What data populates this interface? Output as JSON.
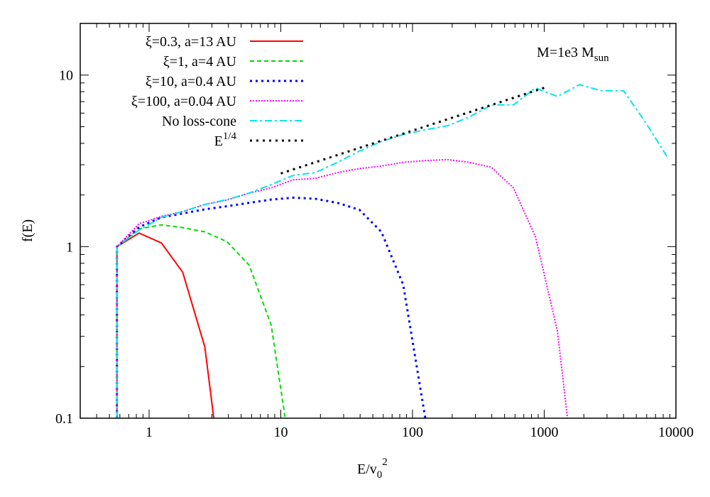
{
  "chart_data": {
    "type": "line",
    "xlabel": "E/v0^2",
    "xlabel_main": "E/v",
    "xlabel_sub": "0",
    "xlabel_sup": "2",
    "ylabel": "f(E)",
    "xscale": "log",
    "yscale": "log",
    "xlim": [
      0.3,
      10000
    ],
    "ylim": [
      0.1,
      20
    ],
    "grid": false,
    "legend_position": "top-left",
    "x_ticks": [
      1,
      10,
      100,
      1000,
      10000
    ],
    "x_tick_labels": [
      "1",
      "10",
      "100",
      "1000",
      "10000"
    ],
    "y_ticks": [
      0.1,
      1,
      10
    ],
    "y_tick_labels": [
      "0.1",
      "1",
      "10"
    ],
    "annotation": {
      "main": "M=1e3 M",
      "sub": "sun"
    },
    "series": [
      {
        "name": "ξ=0.3, a=13 AU",
        "color": "#ff0000",
        "dash": "solid",
        "points": [
          [
            0.57,
            0.1
          ],
          [
            0.57,
            1.0
          ],
          [
            0.84,
            1.2
          ],
          [
            1.24,
            1.05
          ],
          [
            1.8,
            0.71
          ],
          [
            2.65,
            0.26
          ],
          [
            3.1,
            0.1
          ]
        ]
      },
      {
        "name": "ξ=1, a=4 AU",
        "color": "#00dd00",
        "dash": "dashed",
        "points": [
          [
            0.57,
            0.1
          ],
          [
            0.57,
            1.0
          ],
          [
            0.84,
            1.27
          ],
          [
            1.24,
            1.34
          ],
          [
            1.8,
            1.29
          ],
          [
            2.65,
            1.22
          ],
          [
            3.9,
            1.07
          ],
          [
            5.75,
            0.78
          ],
          [
            8.45,
            0.35
          ],
          [
            10.8,
            0.1
          ]
        ]
      },
      {
        "name": "ξ=10, a=0.4 AU",
        "color": "#0000ff",
        "dash": "dotted",
        "points": [
          [
            0.57,
            0.1
          ],
          [
            0.57,
            1.0
          ],
          [
            0.84,
            1.3
          ],
          [
            1.24,
            1.48
          ],
          [
            1.8,
            1.56
          ],
          [
            2.65,
            1.65
          ],
          [
            3.9,
            1.72
          ],
          [
            5.75,
            1.8
          ],
          [
            8.45,
            1.88
          ],
          [
            12.4,
            1.93
          ],
          [
            18.3,
            1.9
          ],
          [
            26.9,
            1.8
          ],
          [
            39.5,
            1.64
          ],
          [
            58,
            1.22
          ],
          [
            85,
            0.6
          ],
          [
            125,
            0.1
          ]
        ]
      },
      {
        "name": "ξ=100, a=0.04 AU",
        "color": "#ff00ff",
        "dash": "dotted-fine",
        "points": [
          [
            0.57,
            0.1
          ],
          [
            0.57,
            1.0
          ],
          [
            0.84,
            1.36
          ],
          [
            1.24,
            1.5
          ],
          [
            1.8,
            1.6
          ],
          [
            2.65,
            1.76
          ],
          [
            3.9,
            1.87
          ],
          [
            5.75,
            2.05
          ],
          [
            8.45,
            2.2
          ],
          [
            12.4,
            2.45
          ],
          [
            18.3,
            2.5
          ],
          [
            26.9,
            2.7
          ],
          [
            39.5,
            2.85
          ],
          [
            58,
            2.95
          ],
          [
            85,
            3.1
          ],
          [
            125,
            3.17
          ],
          [
            184,
            3.22
          ],
          [
            270,
            3.1
          ],
          [
            397,
            2.9
          ],
          [
            584,
            2.2
          ],
          [
            858,
            1.14
          ],
          [
            1261,
            0.32
          ],
          [
            1500,
            0.1
          ]
        ]
      },
      {
        "name": "No loss-cone",
        "color": "#00e5ee",
        "dash": "dash-dot",
        "points": [
          [
            0.57,
            0.1
          ],
          [
            0.57,
            1.0
          ],
          [
            0.84,
            1.25
          ],
          [
            1.24,
            1.48
          ],
          [
            1.8,
            1.6
          ],
          [
            2.65,
            1.76
          ],
          [
            3.9,
            1.88
          ],
          [
            5.75,
            2.05
          ],
          [
            8.45,
            2.3
          ],
          [
            12.4,
            2.6
          ],
          [
            18.3,
            2.7
          ],
          [
            26.9,
            3.1
          ],
          [
            39.5,
            3.6
          ],
          [
            58,
            4.1
          ],
          [
            85,
            4.5
          ],
          [
            125,
            4.8
          ],
          [
            184,
            5.06
          ],
          [
            270,
            5.7
          ],
          [
            397,
            6.7
          ],
          [
            584,
            6.7
          ],
          [
            858,
            8.4
          ],
          [
            1261,
            7.5
          ],
          [
            1854,
            8.8
          ],
          [
            2725,
            8.1
          ],
          [
            4005,
            8.1
          ],
          [
            5888,
            5.3
          ],
          [
            8655,
            3.3
          ]
        ]
      },
      {
        "name": "E^1/4",
        "name_main": "E",
        "name_sup": "1/4",
        "color": "#000000",
        "dash": "sparse-dotted",
        "points": [
          [
            10,
            2.67
          ],
          [
            1000,
            8.43
          ]
        ]
      }
    ]
  }
}
